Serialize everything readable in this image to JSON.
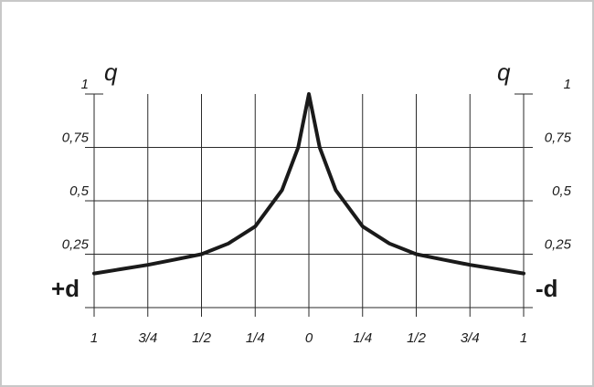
{
  "chart_data": {
    "type": "line",
    "y_label": "q",
    "y_ticks": [
      "0,25",
      "0,5",
      "0,75",
      "1"
    ],
    "y_tick_values": [
      0.25,
      0.5,
      0.75,
      1
    ],
    "x_ticks": [
      "1",
      "3/4",
      "1/2",
      "1/4",
      "0",
      "1/4",
      "1/2",
      "3/4",
      "1"
    ],
    "x_tick_values": [
      -1,
      -0.75,
      -0.5,
      -0.25,
      0,
      0.25,
      0.5,
      0.75,
      1
    ],
    "left_label": "+d",
    "right_label": "-d",
    "xlim": [
      -1,
      1
    ],
    "ylim": [
      0,
      1
    ],
    "grid": true,
    "series": [
      {
        "x": [
          -1,
          -0.875,
          -0.75,
          -0.625,
          -0.5,
          -0.375,
          -0.25,
          -0.125,
          -0.05,
          0,
          0.05,
          0.125,
          0.25,
          0.375,
          0.5,
          0.625,
          0.75,
          0.875,
          1
        ],
        "y": [
          0.16,
          0.18,
          0.2,
          0.225,
          0.25,
          0.3,
          0.38,
          0.55,
          0.75,
          1,
          0.75,
          0.55,
          0.38,
          0.3,
          0.25,
          0.225,
          0.2,
          0.18,
          0.16
        ]
      }
    ]
  }
}
